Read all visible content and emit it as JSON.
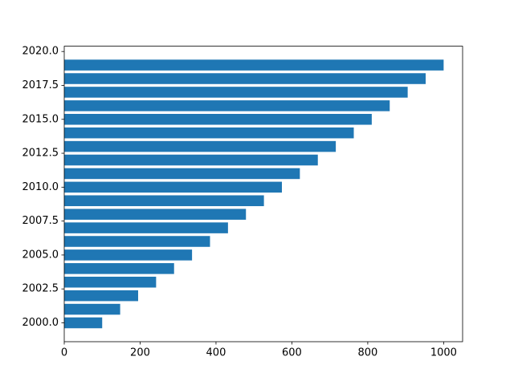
{
  "chart_data": {
    "type": "barh",
    "y": [
      2000,
      2001,
      2002,
      2003,
      2004,
      2005,
      2006,
      2007,
      2008,
      2009,
      2010,
      2011,
      2012,
      2013,
      2014,
      2015,
      2016,
      2017,
      2018,
      2019
    ],
    "values": [
      100,
      147.37,
      194.74,
      242.11,
      289.47,
      336.84,
      384.21,
      431.58,
      478.95,
      526.32,
      573.68,
      621.05,
      668.42,
      715.79,
      763.16,
      810.53,
      857.89,
      905.26,
      952.63,
      1000
    ],
    "color": "#1f77b4",
    "xlim": [
      0,
      1050
    ],
    "xticks": [
      0,
      200,
      400,
      600,
      800,
      1000
    ],
    "ylim": [
      1998.61,
      2020.39
    ],
    "yticks": [
      {
        "value": 2000,
        "label": "2000.0"
      },
      2002.5,
      {
        "value": 2005,
        "label": "2005.0"
      },
      2007.5,
      {
        "value": 2010,
        "label": "2010.0"
      },
      2012.5,
      {
        "value": 2015,
        "label": "2015.0"
      },
      2017.5,
      {
        "value": 2020,
        "label": "2020.0"
      }
    ],
    "grid": false
  }
}
